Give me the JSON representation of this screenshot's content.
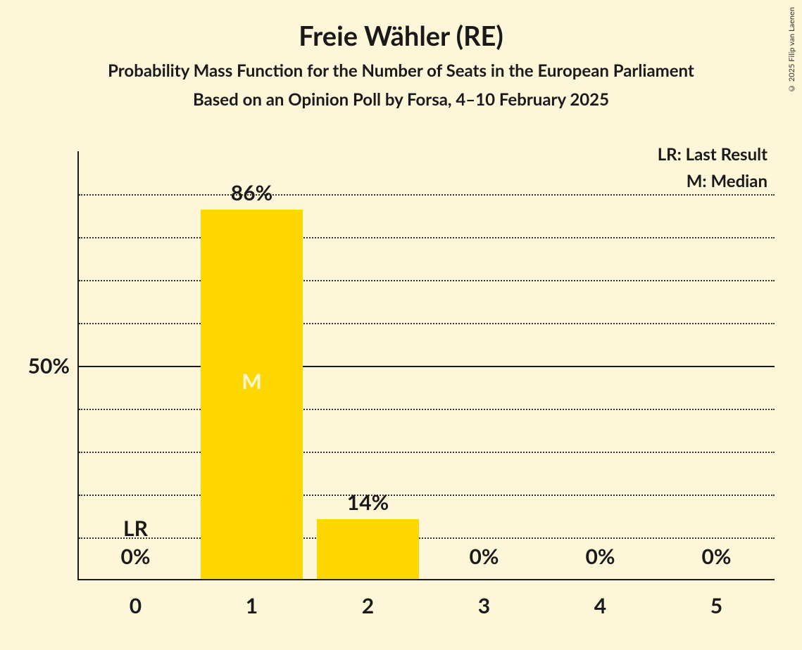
{
  "title": "Freie Wähler (RE)",
  "subtitle1": "Probability Mass Function for the Number of Seats in the European Parliament",
  "subtitle2": "Based on an Opinion Poll by Forsa, 4–10 February 2025",
  "copyright": "© 2025 Filip van Laenen",
  "chart": {
    "type": "bar",
    "background_color": "#fdf6d8",
    "bar_color": "#ffd700",
    "axis_color": "#1a1a1a",
    "grid_color": "#333333",
    "text_color": "#1a1a1a",
    "median_text_color": "#fdf6d8",
    "ylim": [
      0,
      100
    ],
    "y_tick_major": 50,
    "y_tick_minor": 10,
    "y_axis_label": "50%",
    "categories": [
      "0",
      "1",
      "2",
      "3",
      "4",
      "5"
    ],
    "values": [
      0,
      86,
      14,
      0,
      0,
      0
    ],
    "value_labels": [
      "0%",
      "86%",
      "14%",
      "0%",
      "0%",
      "0%"
    ],
    "last_result_index": 0,
    "last_result_label": "LR",
    "median_index": 1,
    "median_label": "M",
    "legend": {
      "lr": "LR: Last Result",
      "m": "M: Median"
    },
    "bar_width_ratio": 0.88,
    "title_fontsize": 38,
    "subtitle_fontsize": 24,
    "axis_label_fontsize": 30
  }
}
